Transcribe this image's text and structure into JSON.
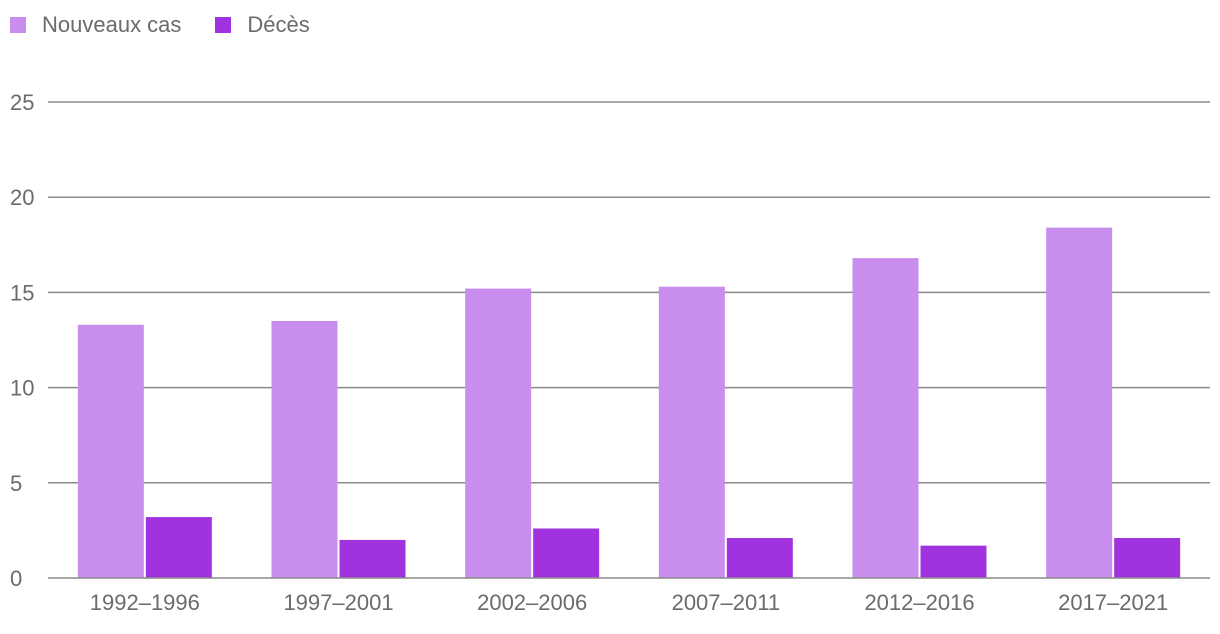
{
  "chart_data": {
    "type": "bar",
    "categories": [
      "1992–1996",
      "1997–2001",
      "2002–2006",
      "2007–2011",
      "2012–2016",
      "2017–2021"
    ],
    "series": [
      {
        "name": "Nouveaux cas",
        "color": "#c98ded",
        "values": [
          13.3,
          13.5,
          15.2,
          15.3,
          16.8,
          18.4
        ]
      },
      {
        "name": "Décès",
        "color": "#a033de",
        "values": [
          3.2,
          2.0,
          2.6,
          2.1,
          1.7,
          2.1
        ]
      }
    ],
    "ylim": [
      0,
      25
    ],
    "yticks": [
      0,
      5,
      10,
      15,
      20,
      25
    ],
    "grid": true,
    "legend_position": "top-left"
  }
}
